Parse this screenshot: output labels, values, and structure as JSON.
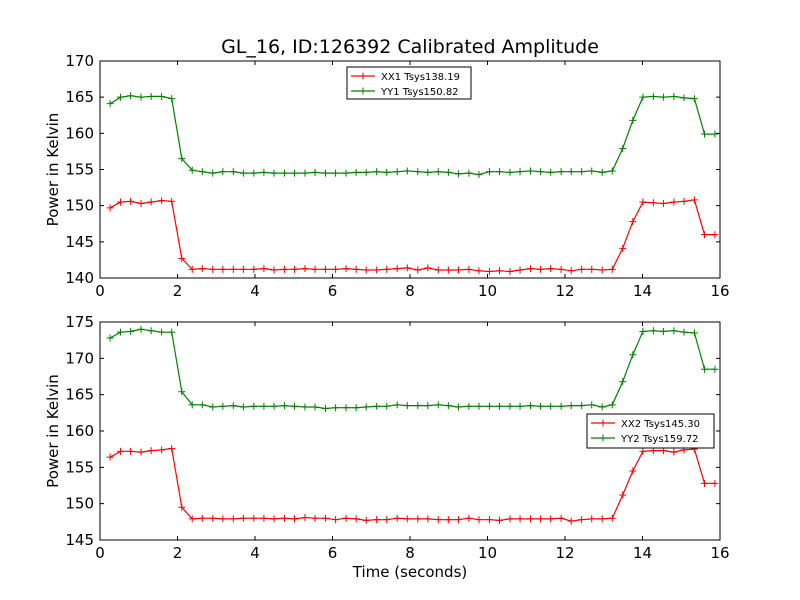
{
  "title": "GL_16, ID:126392 Calibrated Amplitude",
  "chart_data": [
    {
      "type": "line",
      "ylabel": "Power in Kelvin",
      "xlabel": "",
      "xlim": [
        0,
        16
      ],
      "ylim": [
        140,
        170
      ],
      "xticks": [
        "0",
        "2",
        "4",
        "6",
        "8",
        "10",
        "12",
        "14",
        "16"
      ],
      "yticks": [
        "140",
        "145",
        "150",
        "155",
        "160",
        "165",
        "170"
      ],
      "legend_position": "upper-center",
      "x": [
        0.26,
        0.53,
        0.79,
        1.06,
        1.32,
        1.59,
        1.85,
        2.11,
        2.38,
        2.64,
        2.91,
        3.17,
        3.44,
        3.7,
        3.97,
        4.23,
        4.49,
        4.76,
        5.02,
        5.29,
        5.55,
        5.82,
        6.08,
        6.35,
        6.61,
        6.87,
        7.14,
        7.4,
        7.67,
        7.93,
        8.2,
        8.46,
        8.73,
        8.99,
        9.25,
        9.52,
        9.78,
        10.05,
        10.31,
        10.58,
        10.84,
        11.11,
        11.37,
        11.63,
        11.9,
        12.16,
        12.43,
        12.69,
        12.96,
        13.22,
        13.49,
        13.75,
        14.01,
        14.28,
        14.54,
        14.81,
        15.07,
        15.34,
        15.6,
        15.87
      ],
      "series": [
        {
          "name": "XX1 Tsys138.19",
          "color": "#ff0000",
          "values": [
            149.7,
            150.5,
            150.6,
            150.3,
            150.5,
            150.7,
            150.6,
            142.7,
            141.2,
            141.3,
            141.2,
            141.2,
            141.2,
            141.2,
            141.2,
            141.3,
            141.1,
            141.2,
            141.2,
            141.3,
            141.2,
            141.2,
            141.2,
            141.3,
            141.2,
            141.1,
            141.1,
            141.2,
            141.3,
            141.4,
            141.1,
            141.4,
            141.1,
            141.1,
            141.1,
            141.2,
            141.0,
            140.9,
            141.0,
            140.9,
            141.1,
            141.3,
            141.2,
            141.3,
            141.2,
            141.0,
            141.2,
            141.2,
            141.1,
            141.2,
            144.1,
            147.8,
            150.5,
            150.4,
            150.3,
            150.5,
            150.6,
            150.8,
            146.0,
            146.0
          ]
        },
        {
          "name": "YY1 Tsys150.82",
          "color": "#008000",
          "values": [
            164.1,
            165.0,
            165.2,
            165.0,
            165.1,
            165.1,
            164.8,
            156.5,
            154.9,
            154.7,
            154.5,
            154.7,
            154.7,
            154.5,
            154.5,
            154.6,
            154.5,
            154.5,
            154.5,
            154.5,
            154.6,
            154.5,
            154.5,
            154.5,
            154.6,
            154.6,
            154.7,
            154.6,
            154.7,
            154.8,
            154.7,
            154.6,
            154.7,
            154.6,
            154.4,
            154.5,
            154.3,
            154.7,
            154.7,
            154.6,
            154.7,
            154.8,
            154.7,
            154.6,
            154.7,
            154.7,
            154.7,
            154.8,
            154.6,
            154.8,
            157.9,
            161.8,
            165.0,
            165.1,
            165.0,
            165.1,
            164.9,
            164.8,
            159.9,
            159.9
          ]
        }
      ]
    },
    {
      "type": "line",
      "ylabel": "Power in Kelvin",
      "xlabel": "Time (seconds)",
      "xlim": [
        0,
        16
      ],
      "ylim": [
        145,
        175
      ],
      "xticks": [
        "0",
        "2",
        "4",
        "6",
        "8",
        "10",
        "12",
        "14",
        "16"
      ],
      "yticks": [
        "145",
        "150",
        "155",
        "160",
        "165",
        "170",
        "175"
      ],
      "legend_position": "center-right",
      "x": [
        0.26,
        0.53,
        0.79,
        1.06,
        1.32,
        1.59,
        1.85,
        2.11,
        2.38,
        2.64,
        2.91,
        3.17,
        3.44,
        3.7,
        3.97,
        4.23,
        4.49,
        4.76,
        5.02,
        5.29,
        5.55,
        5.82,
        6.08,
        6.35,
        6.61,
        6.87,
        7.14,
        7.4,
        7.67,
        7.93,
        8.2,
        8.46,
        8.73,
        8.99,
        9.25,
        9.52,
        9.78,
        10.05,
        10.31,
        10.58,
        10.84,
        11.11,
        11.37,
        11.63,
        11.9,
        12.16,
        12.43,
        12.69,
        12.96,
        13.22,
        13.49,
        13.75,
        14.01,
        14.28,
        14.54,
        14.81,
        15.07,
        15.34,
        15.6,
        15.87
      ],
      "series": [
        {
          "name": "XX2 Tsys145.30",
          "color": "#ff0000",
          "values": [
            156.4,
            157.2,
            157.2,
            157.1,
            157.3,
            157.4,
            157.6,
            149.5,
            147.9,
            148.0,
            148.0,
            147.9,
            147.9,
            148.0,
            148.0,
            148.0,
            147.9,
            148.0,
            147.9,
            148.1,
            148.0,
            148.0,
            147.8,
            148.0,
            147.9,
            147.7,
            147.8,
            147.8,
            148.0,
            147.9,
            147.9,
            147.9,
            147.8,
            147.8,
            147.8,
            148.0,
            147.8,
            147.8,
            147.7,
            147.9,
            147.9,
            147.9,
            147.9,
            147.9,
            148.0,
            147.6,
            147.8,
            147.9,
            147.9,
            148.0,
            151.2,
            154.5,
            157.2,
            157.3,
            157.3,
            157.1,
            157.4,
            157.5,
            152.8,
            152.8
          ]
        },
        {
          "name": "YY2 Tsys159.72",
          "color": "#008000",
          "values": [
            172.8,
            173.6,
            173.7,
            174.0,
            173.8,
            173.6,
            173.6,
            165.4,
            163.6,
            163.6,
            163.3,
            163.4,
            163.5,
            163.3,
            163.4,
            163.4,
            163.4,
            163.5,
            163.4,
            163.3,
            163.3,
            163.1,
            163.2,
            163.2,
            163.2,
            163.3,
            163.4,
            163.4,
            163.6,
            163.5,
            163.5,
            163.5,
            163.6,
            163.5,
            163.3,
            163.4,
            163.4,
            163.4,
            163.4,
            163.4,
            163.4,
            163.5,
            163.4,
            163.4,
            163.4,
            163.5,
            163.5,
            163.6,
            163.3,
            163.6,
            166.8,
            170.5,
            173.7,
            173.8,
            173.7,
            173.8,
            173.6,
            173.5,
            168.5,
            168.5
          ]
        }
      ]
    }
  ]
}
